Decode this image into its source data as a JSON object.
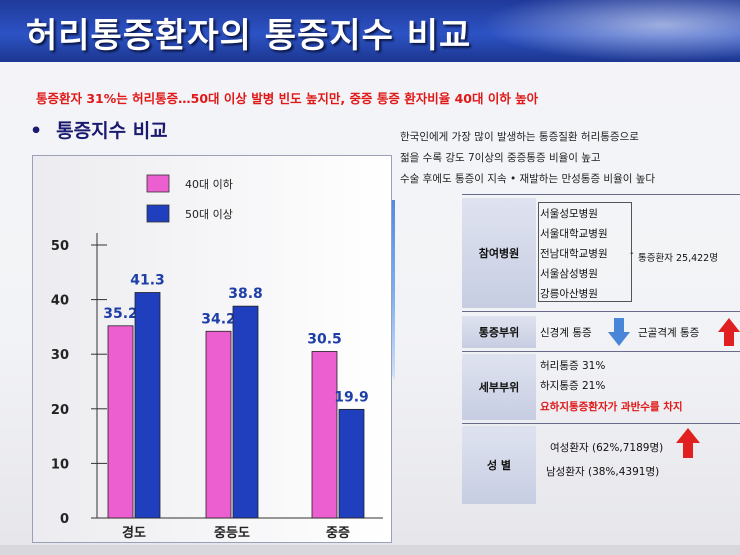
{
  "title": "허리통증환자의 통증지수 비교",
  "subtitle": "통증환자 31%는 허리통증…50대 이상 발병 빈도 높지만, 중증 통증 환자비율 40대 이하 높아",
  "section_heading": "통증지수 비교",
  "chart_data": {
    "type": "bar",
    "categories": [
      "경도",
      "중등도",
      "중증"
    ],
    "series": [
      {
        "name": "40대 이하",
        "color": "#ec5fd0",
        "values": [
          35.2,
          34.2,
          30.5
        ]
      },
      {
        "name": "50대 이상",
        "color": "#1f3fbf",
        "values": [
          41.3,
          38.8,
          19.9
        ]
      }
    ],
    "ylim": [
      0,
      50
    ],
    "yticks": [
      0,
      10,
      20,
      30,
      40,
      50
    ],
    "legend_position": "top-left",
    "grid": false
  },
  "intro_lines": [
    "한국인에게 가장 많이 발생하는 통증질환 허리통증으로",
    "젊을 수록 강도 7이상의 중증통증 비율이 높고",
    "수술 후에도 통증이 지속 • 재발하는 만성통증 비율이 높다"
  ],
  "table": {
    "hospitals_label": "참여병원",
    "hospitals": [
      "서울성모병원",
      "서울대학교병원",
      "전남대학교병원",
      "서울삼성병원",
      "강릉아산병원"
    ],
    "total_patients": "통증환자 25,422명",
    "pain_area_label": "통증부위",
    "pain_area_1": "신경계 통증",
    "pain_area_2": "근골격계 통증",
    "detail_label": "세부부위",
    "detail_1": "허리통증 31%",
    "detail_2": "하지통증 21%",
    "detail_3": "요하지통증환자가 과반수를 차지",
    "gender_label": "성 별",
    "gender_female": "여성환자 (62%,7189명)",
    "gender_male": "남성환자 (38%,4391명)"
  },
  "colors": {
    "title_bar": "#2c52c4",
    "highlight_red": "#e01818",
    "arrow_blue": "#4a86d8",
    "arrow_red": "#e02020"
  }
}
